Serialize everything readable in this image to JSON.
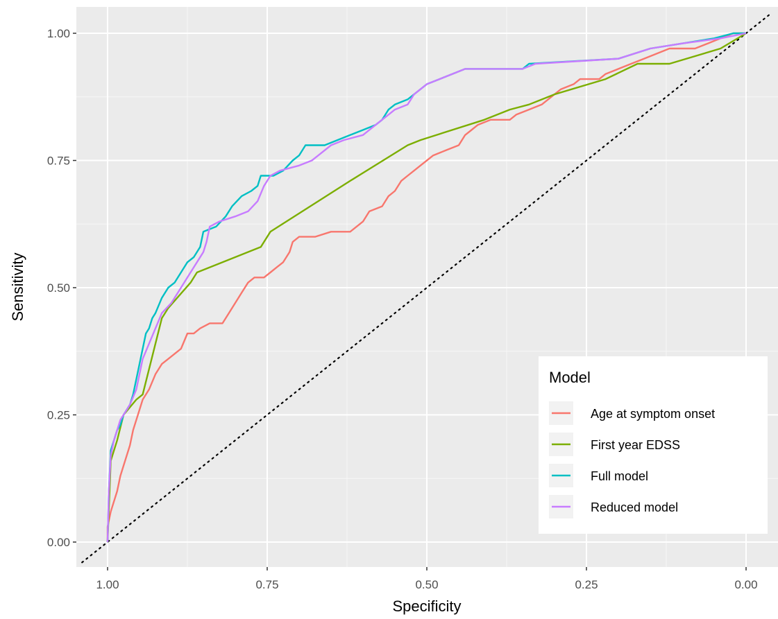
{
  "chart_data": {
    "type": "line",
    "title": "",
    "xlabel": "Specificity",
    "ylabel": "Sensitivity",
    "x_reversed": true,
    "xlim": [
      1.04,
      -0.04
    ],
    "ylim": [
      -0.05,
      1.05
    ],
    "x_ticks": [
      "1.00",
      "0.75",
      "0.50",
      "0.25",
      "0.00"
    ],
    "x_tick_values": [
      1.0,
      0.75,
      0.5,
      0.25,
      0.0
    ],
    "y_ticks": [
      "0.00",
      "0.25",
      "0.50",
      "0.75",
      "1.00"
    ],
    "y_tick_values": [
      0.0,
      0.25,
      0.5,
      0.75,
      1.0
    ],
    "grid": true,
    "background": "#ebebeb",
    "legend": {
      "title": "Model",
      "position": "bottom-right"
    },
    "reference_line": {
      "style": "dotted",
      "points": [
        [
          1.04,
          -0.04
        ],
        [
          -0.04,
          1.04
        ]
      ]
    },
    "series": [
      {
        "name": "Age at symptom onset",
        "color": "#F8766D",
        "points": [
          [
            1.0,
            0.0
          ],
          [
            1.0,
            0.03
          ],
          [
            0.995,
            0.06
          ],
          [
            0.99,
            0.08
          ],
          [
            0.985,
            0.1
          ],
          [
            0.98,
            0.13
          ],
          [
            0.975,
            0.15
          ],
          [
            0.97,
            0.17
          ],
          [
            0.965,
            0.19
          ],
          [
            0.96,
            0.22
          ],
          [
            0.955,
            0.24
          ],
          [
            0.95,
            0.26
          ],
          [
            0.945,
            0.28
          ],
          [
            0.935,
            0.3
          ],
          [
            0.925,
            0.33
          ],
          [
            0.915,
            0.35
          ],
          [
            0.905,
            0.36
          ],
          [
            0.895,
            0.37
          ],
          [
            0.885,
            0.38
          ],
          [
            0.875,
            0.41
          ],
          [
            0.865,
            0.41
          ],
          [
            0.855,
            0.42
          ],
          [
            0.84,
            0.43
          ],
          [
            0.82,
            0.43
          ],
          [
            0.81,
            0.45
          ],
          [
            0.8,
            0.47
          ],
          [
            0.79,
            0.49
          ],
          [
            0.78,
            0.51
          ],
          [
            0.77,
            0.52
          ],
          [
            0.755,
            0.52
          ],
          [
            0.745,
            0.53
          ],
          [
            0.735,
            0.54
          ],
          [
            0.725,
            0.55
          ],
          [
            0.715,
            0.57
          ],
          [
            0.71,
            0.59
          ],
          [
            0.7,
            0.6
          ],
          [
            0.675,
            0.6
          ],
          [
            0.65,
            0.61
          ],
          [
            0.62,
            0.61
          ],
          [
            0.61,
            0.62
          ],
          [
            0.6,
            0.63
          ],
          [
            0.59,
            0.65
          ],
          [
            0.57,
            0.66
          ],
          [
            0.56,
            0.68
          ],
          [
            0.55,
            0.69
          ],
          [
            0.54,
            0.71
          ],
          [
            0.53,
            0.72
          ],
          [
            0.52,
            0.73
          ],
          [
            0.51,
            0.74
          ],
          [
            0.5,
            0.75
          ],
          [
            0.49,
            0.76
          ],
          [
            0.47,
            0.77
          ],
          [
            0.45,
            0.78
          ],
          [
            0.44,
            0.8
          ],
          [
            0.43,
            0.81
          ],
          [
            0.42,
            0.82
          ],
          [
            0.4,
            0.83
          ],
          [
            0.37,
            0.83
          ],
          [
            0.36,
            0.84
          ],
          [
            0.34,
            0.85
          ],
          [
            0.32,
            0.86
          ],
          [
            0.31,
            0.87
          ],
          [
            0.3,
            0.88
          ],
          [
            0.29,
            0.89
          ],
          [
            0.27,
            0.9
          ],
          [
            0.26,
            0.91
          ],
          [
            0.23,
            0.91
          ],
          [
            0.22,
            0.92
          ],
          [
            0.2,
            0.93
          ],
          [
            0.18,
            0.94
          ],
          [
            0.16,
            0.95
          ],
          [
            0.14,
            0.96
          ],
          [
            0.12,
            0.97
          ],
          [
            0.08,
            0.97
          ],
          [
            0.06,
            0.98
          ],
          [
            0.04,
            0.99
          ],
          [
            0.02,
            1.0
          ],
          [
            0.0,
            1.0
          ]
        ]
      },
      {
        "name": "First year EDSS",
        "color": "#7CAE00",
        "points": [
          [
            1.0,
            0.0
          ],
          [
            0.995,
            0.16
          ],
          [
            0.985,
            0.2
          ],
          [
            0.975,
            0.25
          ],
          [
            0.955,
            0.28
          ],
          [
            0.945,
            0.29
          ],
          [
            0.915,
            0.44
          ],
          [
            0.905,
            0.46
          ],
          [
            0.87,
            0.51
          ],
          [
            0.86,
            0.53
          ],
          [
            0.76,
            0.58
          ],
          [
            0.745,
            0.61
          ],
          [
            0.62,
            0.71
          ],
          [
            0.53,
            0.78
          ],
          [
            0.51,
            0.79
          ],
          [
            0.41,
            0.83
          ],
          [
            0.37,
            0.85
          ],
          [
            0.34,
            0.86
          ],
          [
            0.3,
            0.88
          ],
          [
            0.22,
            0.91
          ],
          [
            0.17,
            0.94
          ],
          [
            0.12,
            0.94
          ],
          [
            0.04,
            0.97
          ],
          [
            0.0,
            1.0
          ]
        ]
      },
      {
        "name": "Full model",
        "color": "#00BFC4",
        "points": [
          [
            1.0,
            0.0
          ],
          [
            0.998,
            0.1
          ],
          [
            0.995,
            0.18
          ],
          [
            0.99,
            0.2
          ],
          [
            0.985,
            0.22
          ],
          [
            0.98,
            0.23
          ],
          [
            0.975,
            0.25
          ],
          [
            0.97,
            0.26
          ],
          [
            0.965,
            0.27
          ],
          [
            0.96,
            0.29
          ],
          [
            0.955,
            0.32
          ],
          [
            0.95,
            0.35
          ],
          [
            0.945,
            0.38
          ],
          [
            0.94,
            0.41
          ],
          [
            0.935,
            0.42
          ],
          [
            0.93,
            0.44
          ],
          [
            0.925,
            0.45
          ],
          [
            0.915,
            0.48
          ],
          [
            0.905,
            0.5
          ],
          [
            0.895,
            0.51
          ],
          [
            0.885,
            0.53
          ],
          [
            0.875,
            0.55
          ],
          [
            0.865,
            0.56
          ],
          [
            0.855,
            0.58
          ],
          [
            0.85,
            0.61
          ],
          [
            0.83,
            0.62
          ],
          [
            0.815,
            0.64
          ],
          [
            0.805,
            0.66
          ],
          [
            0.79,
            0.68
          ],
          [
            0.775,
            0.69
          ],
          [
            0.765,
            0.7
          ],
          [
            0.76,
            0.72
          ],
          [
            0.74,
            0.72
          ],
          [
            0.725,
            0.73
          ],
          [
            0.71,
            0.75
          ],
          [
            0.7,
            0.76
          ],
          [
            0.69,
            0.78
          ],
          [
            0.66,
            0.78
          ],
          [
            0.64,
            0.79
          ],
          [
            0.62,
            0.8
          ],
          [
            0.6,
            0.81
          ],
          [
            0.58,
            0.82
          ],
          [
            0.57,
            0.83
          ],
          [
            0.56,
            0.85
          ],
          [
            0.55,
            0.86
          ],
          [
            0.53,
            0.87
          ],
          [
            0.52,
            0.88
          ],
          [
            0.5,
            0.9
          ],
          [
            0.48,
            0.91
          ],
          [
            0.46,
            0.92
          ],
          [
            0.44,
            0.93
          ],
          [
            0.35,
            0.93
          ],
          [
            0.34,
            0.94
          ],
          [
            0.2,
            0.95
          ],
          [
            0.15,
            0.97
          ],
          [
            0.1,
            0.98
          ],
          [
            0.05,
            0.99
          ],
          [
            0.02,
            1.0
          ],
          [
            0.0,
            1.0
          ]
        ]
      },
      {
        "name": "Reduced model",
        "color": "#C77CFF",
        "points": [
          [
            1.0,
            0.0
          ],
          [
            0.998,
            0.1
          ],
          [
            0.995,
            0.17
          ],
          [
            0.99,
            0.2
          ],
          [
            0.985,
            0.22
          ],
          [
            0.98,
            0.24
          ],
          [
            0.975,
            0.25
          ],
          [
            0.97,
            0.26
          ],
          [
            0.965,
            0.27
          ],
          [
            0.955,
            0.3
          ],
          [
            0.95,
            0.33
          ],
          [
            0.945,
            0.36
          ],
          [
            0.935,
            0.39
          ],
          [
            0.925,
            0.42
          ],
          [
            0.915,
            0.45
          ],
          [
            0.9,
            0.47
          ],
          [
            0.885,
            0.5
          ],
          [
            0.875,
            0.52
          ],
          [
            0.86,
            0.55
          ],
          [
            0.85,
            0.57
          ],
          [
            0.845,
            0.59
          ],
          [
            0.84,
            0.62
          ],
          [
            0.825,
            0.63
          ],
          [
            0.8,
            0.64
          ],
          [
            0.78,
            0.65
          ],
          [
            0.765,
            0.67
          ],
          [
            0.755,
            0.7
          ],
          [
            0.745,
            0.72
          ],
          [
            0.73,
            0.73
          ],
          [
            0.7,
            0.74
          ],
          [
            0.68,
            0.75
          ],
          [
            0.67,
            0.76
          ],
          [
            0.65,
            0.78
          ],
          [
            0.63,
            0.79
          ],
          [
            0.6,
            0.8
          ],
          [
            0.58,
            0.82
          ],
          [
            0.56,
            0.84
          ],
          [
            0.55,
            0.85
          ],
          [
            0.53,
            0.86
          ],
          [
            0.52,
            0.88
          ],
          [
            0.5,
            0.9
          ],
          [
            0.48,
            0.91
          ],
          [
            0.46,
            0.92
          ],
          [
            0.44,
            0.93
          ],
          [
            0.35,
            0.93
          ],
          [
            0.33,
            0.94
          ],
          [
            0.2,
            0.95
          ],
          [
            0.15,
            0.97
          ],
          [
            0.1,
            0.98
          ],
          [
            0.04,
            0.99
          ],
          [
            0.0,
            1.0
          ]
        ]
      }
    ]
  }
}
